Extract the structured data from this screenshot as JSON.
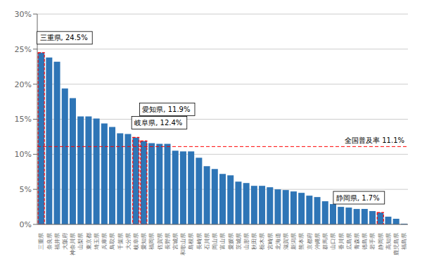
{
  "chart_data": {
    "type": "bar",
    "categories": [
      "三重県",
      "奈良県",
      "福井県",
      "大阪府",
      "神奈川県",
      "山梨県",
      "東京都",
      "埼玉県",
      "兵庫県",
      "鳥取県",
      "千葉県",
      "大分県",
      "岐阜県",
      "愛知県",
      "福岡県",
      "佐賀県",
      "長野県",
      "宮城県",
      "和歌山県",
      "島根県",
      "長崎県",
      "石川県",
      "岡山県",
      "富山県",
      "愛媛県",
      "茨城県",
      "山形県",
      "秋田県",
      "栃木県",
      "宮崎県",
      "北海道",
      "滋賀県",
      "新潟県",
      "熊本県",
      "京都府",
      "沖縄県",
      "群馬県",
      "山口県",
      "香川県",
      "広島県",
      "青森県",
      "徳島県",
      "岩手県",
      "静岡県",
      "高知県",
      "鹿児島県",
      "福島県"
    ],
    "values": [
      24.5,
      23.8,
      23.2,
      19.4,
      18.0,
      15.4,
      15.4,
      15.1,
      14.4,
      13.9,
      13.0,
      12.9,
      12.4,
      11.9,
      11.6,
      11.5,
      11.5,
      10.5,
      10.4,
      10.4,
      9.5,
      8.3,
      7.9,
      7.2,
      7.0,
      6.1,
      5.9,
      5.5,
      5.5,
      5.3,
      5.0,
      4.9,
      4.7,
      4.5,
      4.1,
      3.9,
      3.3,
      2.9,
      2.5,
      2.4,
      2.2,
      2.2,
      1.9,
      1.7,
      1.1,
      0.8,
      0.1
    ],
    "color": "#2E75B6",
    "highlight": [
      "三重県",
      "岐阜県",
      "愛知県",
      "静岡県"
    ],
    "ylim": [
      0,
      30
    ],
    "yticks": [
      {
        "value": 0,
        "label": "0%"
      },
      {
        "value": 5,
        "label": "5%"
      },
      {
        "value": 10,
        "label": "10%"
      },
      {
        "value": 15,
        "label": "15%"
      },
      {
        "value": 20,
        "label": "20%"
      },
      {
        "value": 25,
        "label": "25%"
      },
      {
        "value": 30,
        "label": "30%"
      }
    ],
    "grid": true,
    "reference_line": {
      "value": 11.1,
      "color": "#FF0000",
      "label": "全国普及率 11.1%"
    },
    "annotations": [
      {
        "text": "三重県, 24.5%",
        "category": "三重県"
      },
      {
        "text": "岐阜県, 12.4%",
        "category": "岐阜県"
      },
      {
        "text": "愛知県, 11.9%",
        "category": "愛知県"
      },
      {
        "text": "静岡県, 1.7%",
        "category": "静岡県"
      }
    ]
  }
}
